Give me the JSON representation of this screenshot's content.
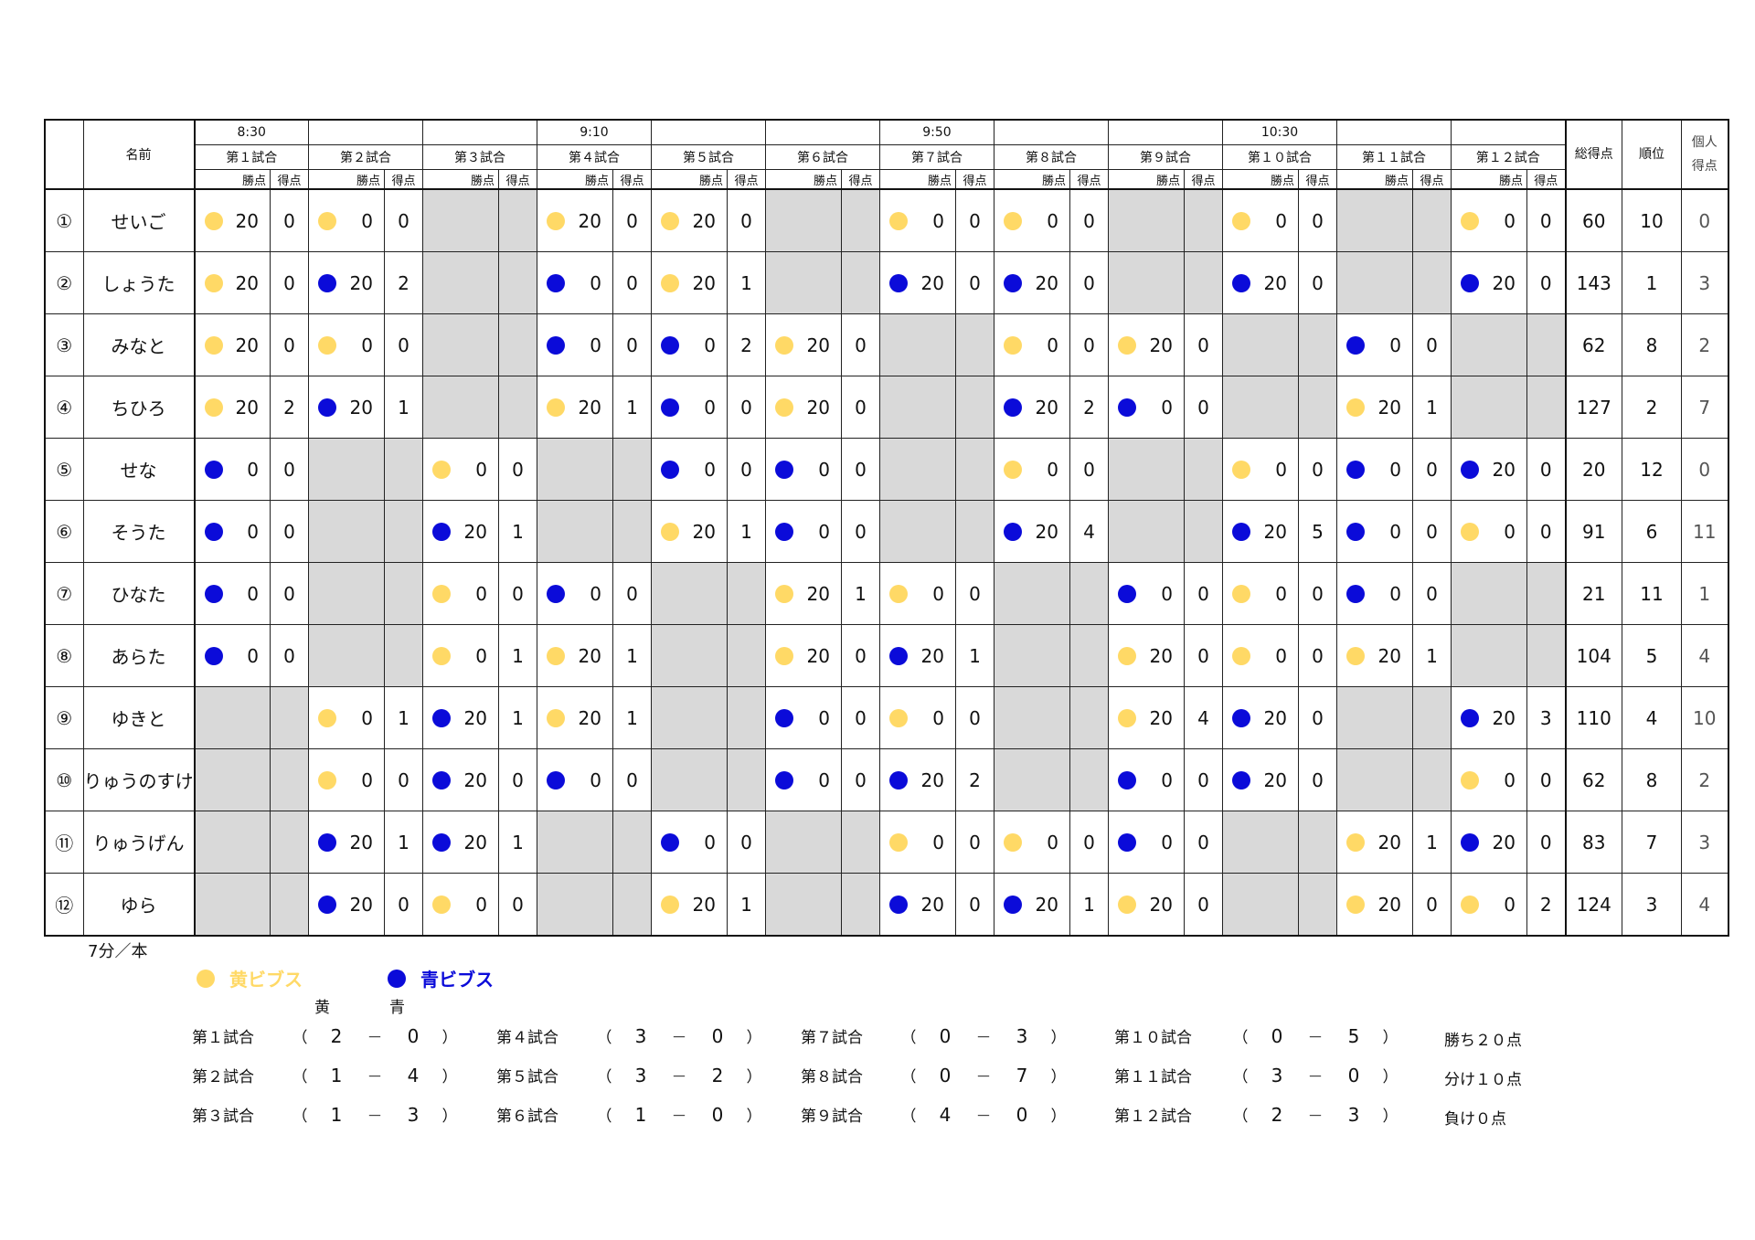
{
  "header": {
    "name_label": "名前",
    "times": [
      "8:30",
      "9:10",
      "9:50",
      "10:30"
    ],
    "games": [
      "第１試合",
      "第２試合",
      "第３試合",
      "第４試合",
      "第５試合",
      "第６試合",
      "第７試合",
      "第８試合",
      "第９試合",
      "第１０試合",
      "第１１試合",
      "第１２試合"
    ],
    "win_label": "勝点",
    "score_label": "得点",
    "total_label": "総得点",
    "rank_label": "順位",
    "indiv_label_1": "個人",
    "indiv_label_2": "得点"
  },
  "players": [
    {
      "no": "①",
      "name": "せいご",
      "cells": [
        [
          "Y",
          "20",
          "0"
        ],
        [
          "Y",
          "0",
          "0"
        ],
        null,
        [
          "Y",
          "20",
          "0"
        ],
        [
          "Y",
          "20",
          "0"
        ],
        null,
        [
          "Y",
          "0",
          "0"
        ],
        [
          "Y",
          "0",
          "0"
        ],
        null,
        [
          "Y",
          "0",
          "0"
        ],
        null,
        [
          "Y",
          "0",
          "0"
        ]
      ],
      "total": "60",
      "rank": "10",
      "indiv": "0"
    },
    {
      "no": "②",
      "name": "しょうた",
      "cells": [
        [
          "Y",
          "20",
          "0"
        ],
        [
          "B",
          "20",
          "2"
        ],
        null,
        [
          "B",
          "0",
          "0"
        ],
        [
          "Y",
          "20",
          "1"
        ],
        null,
        [
          "B",
          "20",
          "0"
        ],
        [
          "B",
          "20",
          "0"
        ],
        null,
        [
          "B",
          "20",
          "0"
        ],
        null,
        [
          "B",
          "20",
          "0"
        ]
      ],
      "total": "143",
      "rank": "1",
      "indiv": "3"
    },
    {
      "no": "③",
      "name": "みなと",
      "cells": [
        [
          "Y",
          "20",
          "0"
        ],
        [
          "Y",
          "0",
          "0"
        ],
        null,
        [
          "B",
          "0",
          "0"
        ],
        [
          "B",
          "0",
          "2"
        ],
        [
          "Y",
          "20",
          "0"
        ],
        null,
        [
          "Y",
          "0",
          "0"
        ],
        [
          "Y",
          "20",
          "0"
        ],
        null,
        [
          "B",
          "0",
          "0"
        ],
        null
      ],
      "total": "62",
      "rank": "8",
      "indiv": "2"
    },
    {
      "no": "④",
      "name": "ちひろ",
      "cells": [
        [
          "Y",
          "20",
          "2"
        ],
        [
          "B",
          "20",
          "1"
        ],
        null,
        [
          "Y",
          "20",
          "1"
        ],
        [
          "B",
          "0",
          "0"
        ],
        [
          "Y",
          "20",
          "0"
        ],
        null,
        [
          "B",
          "20",
          "2"
        ],
        [
          "B",
          "0",
          "0"
        ],
        null,
        [
          "Y",
          "20",
          "1"
        ],
        null
      ],
      "total": "127",
      "rank": "2",
      "indiv": "7"
    },
    {
      "no": "⑤",
      "name": "せな",
      "cells": [
        [
          "B",
          "0",
          "0"
        ],
        null,
        [
          "Y",
          "0",
          "0"
        ],
        null,
        [
          "B",
          "0",
          "0"
        ],
        [
          "B",
          "0",
          "0"
        ],
        null,
        [
          "Y",
          "0",
          "0"
        ],
        null,
        [
          "Y",
          "0",
          "0"
        ],
        [
          "B",
          "0",
          "0"
        ],
        [
          "B",
          "20",
          "0"
        ]
      ],
      "total": "20",
      "rank": "12",
      "indiv": "0"
    },
    {
      "no": "⑥",
      "name": "そうた",
      "cells": [
        [
          "B",
          "0",
          "0"
        ],
        null,
        [
          "B",
          "20",
          "1"
        ],
        null,
        [
          "Y",
          "20",
          "1"
        ],
        [
          "B",
          "0",
          "0"
        ],
        null,
        [
          "B",
          "20",
          "4"
        ],
        null,
        [
          "B",
          "20",
          "5"
        ],
        [
          "B",
          "0",
          "0"
        ],
        [
          "Y",
          "0",
          "0"
        ]
      ],
      "total": "91",
      "rank": "6",
      "indiv": "11"
    },
    {
      "no": "⑦",
      "name": "ひなた",
      "cells": [
        [
          "B",
          "0",
          "0"
        ],
        null,
        [
          "Y",
          "0",
          "0"
        ],
        [
          "B",
          "0",
          "0"
        ],
        null,
        [
          "Y",
          "20",
          "1"
        ],
        [
          "Y",
          "0",
          "0"
        ],
        null,
        [
          "B",
          "0",
          "0"
        ],
        [
          "Y",
          "0",
          "0"
        ],
        [
          "B",
          "0",
          "0"
        ],
        null
      ],
      "total": "21",
      "rank": "11",
      "indiv": "1"
    },
    {
      "no": "⑧",
      "name": "あらた",
      "cells": [
        [
          "B",
          "0",
          "0"
        ],
        null,
        [
          "Y",
          "0",
          "1"
        ],
        [
          "Y",
          "20",
          "1"
        ],
        null,
        [
          "Y",
          "20",
          "0"
        ],
        [
          "B",
          "20",
          "1"
        ],
        null,
        [
          "Y",
          "20",
          "0"
        ],
        [
          "Y",
          "0",
          "0"
        ],
        [
          "Y",
          "20",
          "1"
        ],
        null
      ],
      "total": "104",
      "rank": "5",
      "indiv": "4"
    },
    {
      "no": "⑨",
      "name": "ゆきと",
      "cells": [
        null,
        [
          "Y",
          "0",
          "1"
        ],
        [
          "B",
          "20",
          "1"
        ],
        [
          "Y",
          "20",
          "1"
        ],
        null,
        [
          "B",
          "0",
          "0"
        ],
        [
          "Y",
          "0",
          "0"
        ],
        null,
        [
          "Y",
          "20",
          "4"
        ],
        [
          "B",
          "20",
          "0"
        ],
        null,
        [
          "B",
          "20",
          "3"
        ]
      ],
      "total": "110",
      "rank": "4",
      "indiv": "10"
    },
    {
      "no": "⑩",
      "name": "りゅうのすけ",
      "cells": [
        null,
        [
          "Y",
          "0",
          "0"
        ],
        [
          "B",
          "20",
          "0"
        ],
        [
          "B",
          "0",
          "0"
        ],
        null,
        [
          "B",
          "0",
          "0"
        ],
        [
          "B",
          "20",
          "2"
        ],
        null,
        [
          "B",
          "0",
          "0"
        ],
        [
          "B",
          "20",
          "0"
        ],
        null,
        [
          "Y",
          "0",
          "0"
        ]
      ],
      "total": "62",
      "rank": "8",
      "indiv": "2"
    },
    {
      "no": "⑪",
      "name": "りゅうげん",
      "cells": [
        null,
        [
          "B",
          "20",
          "1"
        ],
        [
          "B",
          "20",
          "1"
        ],
        null,
        [
          "B",
          "0",
          "0"
        ],
        null,
        [
          "Y",
          "0",
          "0"
        ],
        [
          "Y",
          "0",
          "0"
        ],
        [
          "B",
          "0",
          "0"
        ],
        null,
        [
          "Y",
          "20",
          "1"
        ],
        [
          "B",
          "20",
          "0"
        ]
      ],
      "total": "83",
      "rank": "7",
      "indiv": "3"
    },
    {
      "no": "⑫",
      "name": "ゆら",
      "cells": [
        null,
        [
          "B",
          "20",
          "0"
        ],
        [
          "Y",
          "0",
          "0"
        ],
        null,
        [
          "Y",
          "20",
          "1"
        ],
        null,
        [
          "B",
          "20",
          "0"
        ],
        [
          "B",
          "20",
          "1"
        ],
        [
          "Y",
          "20",
          "0"
        ],
        null,
        [
          "Y",
          "20",
          "0"
        ],
        [
          "Y",
          "0",
          "2"
        ]
      ],
      "total": "124",
      "rank": "3",
      "indiv": "4"
    }
  ],
  "colors": {
    "yellow": "#ffd966",
    "blue": "#0b0bd9",
    "gray": "#d9d9d9"
  },
  "footer": {
    "per_game": "7分／本",
    "legend_yellow": "黄ビブス",
    "legend_blue": "青ビブス",
    "col_yellow": "黄",
    "col_blue": "青",
    "open": "（",
    "close": "）",
    "dash": "－",
    "results": [
      {
        "game": "第１試合",
        "y": "2",
        "b": "0"
      },
      {
        "game": "第２試合",
        "y": "1",
        "b": "4"
      },
      {
        "game": "第３試合",
        "y": "1",
        "b": "3"
      },
      {
        "game": "第４試合",
        "y": "3",
        "b": "0"
      },
      {
        "game": "第５試合",
        "y": "3",
        "b": "2"
      },
      {
        "game": "第６試合",
        "y": "1",
        "b": "0"
      },
      {
        "game": "第７試合",
        "y": "0",
        "b": "3"
      },
      {
        "game": "第８試合",
        "y": "0",
        "b": "7"
      },
      {
        "game": "第９試合",
        "y": "4",
        "b": "0"
      },
      {
        "game": "第１０試合",
        "y": "0",
        "b": "5"
      },
      {
        "game": "第１１試合",
        "y": "3",
        "b": "0"
      },
      {
        "game": "第１２試合",
        "y": "2",
        "b": "3"
      }
    ],
    "rules": [
      "勝ち２０点",
      "分け１０点",
      "負け０点"
    ]
  }
}
